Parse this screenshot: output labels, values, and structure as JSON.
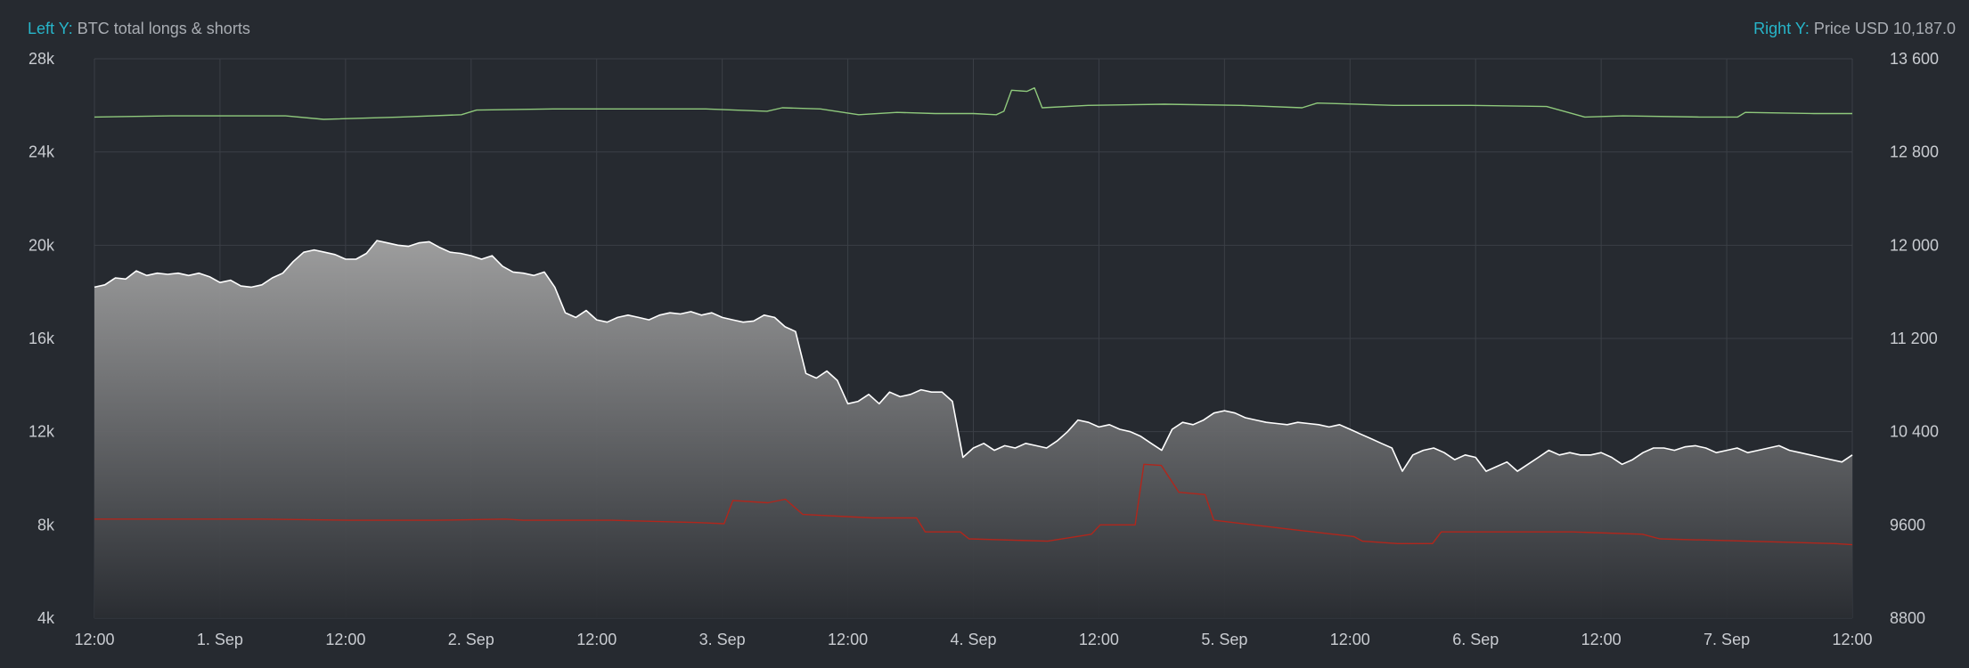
{
  "header": {
    "left_key": "Left Y:",
    "left_label": "BTC total longs & shorts",
    "right_key": "Right Y:",
    "right_label": "Price USD 10,187.0"
  },
  "chart_data": {
    "type": "area",
    "x_ticks": [
      "12:00",
      "1. Sep",
      "12:00",
      "2. Sep",
      "12:00",
      "3. Sep",
      "12:00",
      "4. Sep",
      "12:00",
      "5. Sep",
      "12:00",
      "6. Sep",
      "12:00",
      "7. Sep",
      "12:00"
    ],
    "x_range_hours": [
      0,
      168
    ],
    "left_axis": {
      "ticks": [
        "4k",
        "8k",
        "12k",
        "16k",
        "20k",
        "24k",
        "28k"
      ],
      "range": [
        4000,
        28000
      ]
    },
    "right_axis": {
      "ticks": [
        "8800",
        "9600",
        "10 400",
        "11 200",
        "12 000",
        "12 800",
        "13 600"
      ],
      "range": [
        8800,
        13600
      ]
    },
    "grid": true,
    "series": [
      {
        "name": "BTC total longs & shorts",
        "axis": "left",
        "style": "area",
        "color": "#ffffff",
        "points": [
          [
            0,
            18200
          ],
          [
            1,
            18300
          ],
          [
            2,
            18600
          ],
          [
            3,
            18550
          ],
          [
            4,
            18900
          ],
          [
            5,
            18700
          ],
          [
            6,
            18800
          ],
          [
            7,
            18750
          ],
          [
            8,
            18800
          ],
          [
            9,
            18700
          ],
          [
            10,
            18800
          ],
          [
            11,
            18650
          ],
          [
            12,
            18400
          ],
          [
            13,
            18500
          ],
          [
            14,
            18250
          ],
          [
            15,
            18200
          ],
          [
            16,
            18300
          ],
          [
            17,
            18600
          ],
          [
            18,
            18800
          ],
          [
            19,
            19300
          ],
          [
            20,
            19700
          ],
          [
            21,
            19800
          ],
          [
            22,
            19700
          ],
          [
            23,
            19600
          ],
          [
            24,
            19400
          ],
          [
            25,
            19400
          ],
          [
            26,
            19650
          ],
          [
            27,
            20200
          ],
          [
            28,
            20100
          ],
          [
            29,
            20000
          ],
          [
            30,
            19950
          ],
          [
            31,
            20100
          ],
          [
            32,
            20150
          ],
          [
            33,
            19900
          ],
          [
            34,
            19700
          ],
          [
            35,
            19650
          ],
          [
            36,
            19550
          ],
          [
            37,
            19400
          ],
          [
            38,
            19550
          ],
          [
            39,
            19100
          ],
          [
            40,
            18850
          ],
          [
            41,
            18800
          ],
          [
            42,
            18700
          ],
          [
            43,
            18850
          ],
          [
            44,
            18200
          ],
          [
            45,
            17100
          ],
          [
            46,
            16900
          ],
          [
            47,
            17200
          ],
          [
            48,
            16800
          ],
          [
            49,
            16700
          ],
          [
            50,
            16900
          ],
          [
            51,
            17000
          ],
          [
            52,
            16900
          ],
          [
            53,
            16800
          ],
          [
            54,
            17000
          ],
          [
            55,
            17100
          ],
          [
            56,
            17050
          ],
          [
            57,
            17150
          ],
          [
            58,
            17000
          ],
          [
            59,
            17100
          ],
          [
            60,
            16900
          ],
          [
            61,
            16800
          ],
          [
            62,
            16700
          ],
          [
            63,
            16750
          ],
          [
            64,
            17000
          ],
          [
            65,
            16900
          ],
          [
            66,
            16500
          ],
          [
            67,
            16300
          ],
          [
            68,
            14500
          ],
          [
            69,
            14300
          ],
          [
            70,
            14600
          ],
          [
            71,
            14200
          ],
          [
            72,
            13200
          ],
          [
            73,
            13300
          ],
          [
            74,
            13600
          ],
          [
            75,
            13200
          ],
          [
            76,
            13700
          ],
          [
            77,
            13500
          ],
          [
            78,
            13600
          ],
          [
            79,
            13800
          ],
          [
            80,
            13700
          ],
          [
            81,
            13700
          ],
          [
            82,
            13300
          ],
          [
            83,
            10900
          ],
          [
            84,
            11300
          ],
          [
            85,
            11500
          ],
          [
            86,
            11200
          ],
          [
            87,
            11400
          ],
          [
            88,
            11300
          ],
          [
            89,
            11500
          ],
          [
            90,
            11400
          ],
          [
            91,
            11300
          ],
          [
            92,
            11600
          ],
          [
            93,
            12000
          ],
          [
            94,
            12500
          ],
          [
            95,
            12400
          ],
          [
            96,
            12200
          ],
          [
            97,
            12300
          ],
          [
            98,
            12100
          ],
          [
            99,
            12000
          ],
          [
            100,
            11800
          ],
          [
            101,
            11500
          ],
          [
            102,
            11200
          ],
          [
            103,
            12100
          ],
          [
            104,
            12400
          ],
          [
            105,
            12300
          ],
          [
            106,
            12500
          ],
          [
            107,
            12800
          ],
          [
            108,
            12900
          ],
          [
            109,
            12800
          ],
          [
            110,
            12600
          ],
          [
            111,
            12500
          ],
          [
            112,
            12400
          ],
          [
            113,
            12350
          ],
          [
            114,
            12300
          ],
          [
            115,
            12400
          ],
          [
            116,
            12350
          ],
          [
            117,
            12300
          ],
          [
            118,
            12200
          ],
          [
            119,
            12300
          ],
          [
            120,
            12100
          ],
          [
            121,
            11900
          ],
          [
            122,
            11700
          ],
          [
            123,
            11500
          ],
          [
            124,
            11300
          ],
          [
            125,
            10300
          ],
          [
            126,
            11000
          ],
          [
            127,
            11200
          ],
          [
            128,
            11300
          ],
          [
            129,
            11100
          ],
          [
            130,
            10800
          ],
          [
            131,
            11000
          ],
          [
            132,
            10900
          ],
          [
            133,
            10300
          ],
          [
            134,
            10500
          ],
          [
            135,
            10700
          ],
          [
            136,
            10300
          ],
          [
            137,
            10600
          ],
          [
            138,
            10900
          ],
          [
            139,
            11200
          ],
          [
            140,
            11000
          ],
          [
            141,
            11100
          ],
          [
            142,
            11000
          ],
          [
            143,
            11000
          ],
          [
            144,
            11100
          ],
          [
            145,
            10900
          ],
          [
            146,
            10600
          ],
          [
            147,
            10800
          ],
          [
            148,
            11100
          ],
          [
            149,
            11300
          ],
          [
            150,
            11300
          ],
          [
            151,
            11200
          ],
          [
            152,
            11350
          ],
          [
            153,
            11400
          ],
          [
            154,
            11300
          ],
          [
            155,
            11100
          ],
          [
            156,
            11200
          ],
          [
            157,
            11300
          ],
          [
            158,
            11100
          ],
          [
            159,
            11200
          ],
          [
            160,
            11300
          ],
          [
            161,
            11400
          ],
          [
            162,
            11200
          ],
          [
            163,
            11100
          ],
          [
            164,
            11000
          ],
          [
            165,
            10900
          ],
          [
            166,
            10800
          ],
          [
            167,
            10700
          ],
          [
            168,
            11000
          ]
        ]
      },
      {
        "name": "",
        "axis": "left",
        "style": "line",
        "color": "#b1261c",
        "points": [
          [
            1,
            8250
          ],
          [
            10,
            8250
          ],
          [
            20,
            8250
          ],
          [
            30,
            8200
          ],
          [
            40,
            8200
          ],
          [
            48,
            8250
          ],
          [
            50,
            8200
          ],
          [
            60,
            8200
          ],
          [
            70,
            8100
          ],
          [
            73,
            8050
          ],
          [
            74,
            9050
          ],
          [
            78,
            8950
          ],
          [
            80,
            9100
          ],
          [
            82,
            8450
          ],
          [
            90,
            8300
          ],
          [
            95,
            8300
          ],
          [
            96,
            7700
          ],
          [
            100,
            7700
          ],
          [
            101,
            7400
          ],
          [
            110,
            7300
          ],
          [
            115,
            7600
          ],
          [
            116,
            8000
          ],
          [
            120,
            8000
          ],
          [
            121,
            10600
          ],
          [
            123,
            10550
          ],
          [
            125,
            9400
          ],
          [
            128,
            9300
          ],
          [
            129,
            8200
          ],
          [
            138,
            7800
          ],
          [
            145,
            7500
          ],
          [
            146,
            7300
          ],
          [
            150,
            7200
          ],
          [
            154,
            7200
          ],
          [
            155,
            7700
          ],
          [
            165,
            7700
          ],
          [
            170,
            7700
          ],
          [
            178,
            7600
          ],
          [
            180,
            7400
          ],
          [
            190,
            7300
          ],
          [
            200,
            7200
          ],
          [
            202,
            7150
          ]
        ]
      },
      {
        "name": "",
        "axis": "right",
        "style": "line",
        "color": "#8fc97c",
        "points": [
          [
            0,
            13100
          ],
          [
            10,
            13110
          ],
          [
            20,
            13110
          ],
          [
            25,
            13110
          ],
          [
            30,
            13080
          ],
          [
            40,
            13100
          ],
          [
            48,
            13120
          ],
          [
            50,
            13160
          ],
          [
            60,
            13170
          ],
          [
            70,
            13170
          ],
          [
            80,
            13170
          ],
          [
            88,
            13150
          ],
          [
            90,
            13180
          ],
          [
            95,
            13170
          ],
          [
            100,
            13120
          ],
          [
            105,
            13140
          ],
          [
            110,
            13130
          ],
          [
            115,
            13130
          ],
          [
            118,
            13120
          ],
          [
            119,
            13150
          ],
          [
            120,
            13330
          ],
          [
            122,
            13320
          ],
          [
            123,
            13350
          ],
          [
            124,
            13180
          ],
          [
            130,
            13200
          ],
          [
            140,
            13210
          ],
          [
            150,
            13200
          ],
          [
            158,
            13180
          ],
          [
            160,
            13220
          ],
          [
            170,
            13200
          ],
          [
            180,
            13200
          ],
          [
            190,
            13190
          ],
          [
            195,
            13100
          ],
          [
            200,
            13110
          ],
          [
            210,
            13100
          ],
          [
            215,
            13100
          ],
          [
            216,
            13140
          ],
          [
            225,
            13130
          ],
          [
            230,
            13130
          ]
        ]
      }
    ]
  }
}
